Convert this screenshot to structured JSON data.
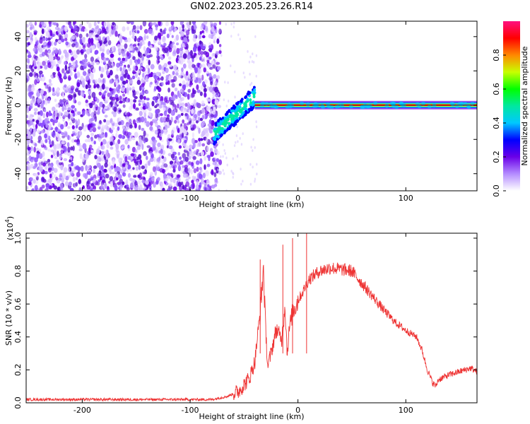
{
  "figure_title": "GN02.2023.205.23.26.R14",
  "colors": {
    "spectrogram_scatter": "#6a00e8",
    "ridge_core": "#ff2020",
    "ridge_edge": "#00e8e8",
    "snr_line": "#ee3333"
  },
  "chart_data": [
    {
      "type": "heatmap",
      "xlabel": "Height of straight line (km)",
      "ylabel": "Frequency (Hz)",
      "xlim": [
        -252,
        166
      ],
      "ylim": [
        -50,
        49
      ],
      "xticks": [
        "-200",
        "-100",
        "0",
        "100"
      ],
      "yticks": [
        "-40",
        "-20",
        "0",
        "20",
        "40"
      ],
      "xtick_values": [
        -200,
        -100,
        0,
        100
      ],
      "ytick_values": [
        -40,
        -20,
        0,
        20,
        40
      ],
      "grid": false,
      "colorbar": {
        "label": "Normalized spectral amplitude",
        "range": [
          0,
          1
        ],
        "ticks": [
          "0.0",
          "0.2",
          "0.4",
          "0.6",
          "0.8"
        ],
        "tick_values": [
          0.0,
          0.2,
          0.4,
          0.6,
          0.8
        ],
        "colormap": [
          "#ffffff",
          "#b48cff",
          "#6a00e8",
          "#0000ff",
          "#00c8ff",
          "#00e8a0",
          "#00ff00",
          "#c8ff00",
          "#ff8800",
          "#ff0000",
          "#ff1080"
        ]
      },
      "features": {
        "noise_region_x": [
          -252,
          -78
        ],
        "transition_band": {
          "x": [
            -78,
            -40
          ],
          "freq_start": -17,
          "freq_end": 5
        },
        "ridge": {
          "x": [
            -40,
            166
          ],
          "freq": 0,
          "amplitude": 0.9
        }
      }
    },
    {
      "type": "line",
      "xlabel": "Height of straight line (km)",
      "ylabel": "SNR (10 * v/v)",
      "scale_label": "(x10",
      "scale_exponent": "4",
      "scale_close": ")",
      "xlim": [
        -252,
        166
      ],
      "ylim": [
        0.0,
        1.03
      ],
      "xticks": [
        "-200",
        "-100",
        "0",
        "100"
      ],
      "yticks": [
        "0.0",
        "0.2",
        "0.4",
        "0.6",
        "0.8",
        "1.0"
      ],
      "xtick_values": [
        -200,
        -100,
        0,
        100
      ],
      "ytick_values": [
        0.0,
        0.2,
        0.4,
        0.6,
        0.8,
        1.0
      ],
      "grid": false,
      "series": [
        {
          "x": [
            -252,
            -200,
            -150,
            -100,
            -80,
            -65,
            -55,
            -45,
            -40,
            -35,
            -32,
            -30,
            -28,
            -25,
            -20,
            -15,
            -12,
            -10,
            -8,
            -5,
            0,
            5,
            10,
            20,
            30,
            40,
            50,
            60,
            70,
            80,
            90,
            100,
            110,
            115,
            120,
            125,
            128,
            130,
            140,
            150,
            160,
            166
          ],
          "y": [
            0.02,
            0.02,
            0.02,
            0.02,
            0.02,
            0.04,
            0.07,
            0.15,
            0.25,
            0.55,
            0.82,
            0.45,
            0.22,
            0.3,
            0.45,
            0.38,
            0.6,
            0.3,
            0.45,
            0.55,
            0.62,
            0.68,
            0.75,
            0.8,
            0.82,
            0.81,
            0.8,
            0.72,
            0.64,
            0.56,
            0.49,
            0.44,
            0.4,
            0.32,
            0.2,
            0.12,
            0.1,
            0.14,
            0.17,
            0.19,
            0.21,
            0.19
          ]
        }
      ],
      "spikes": [
        {
          "x": -35,
          "y": 0.87
        },
        {
          "x": -14,
          "y": 0.96
        },
        {
          "x": -5,
          "y": 1.0
        },
        {
          "x": 8,
          "y": 1.03
        }
      ]
    }
  ]
}
